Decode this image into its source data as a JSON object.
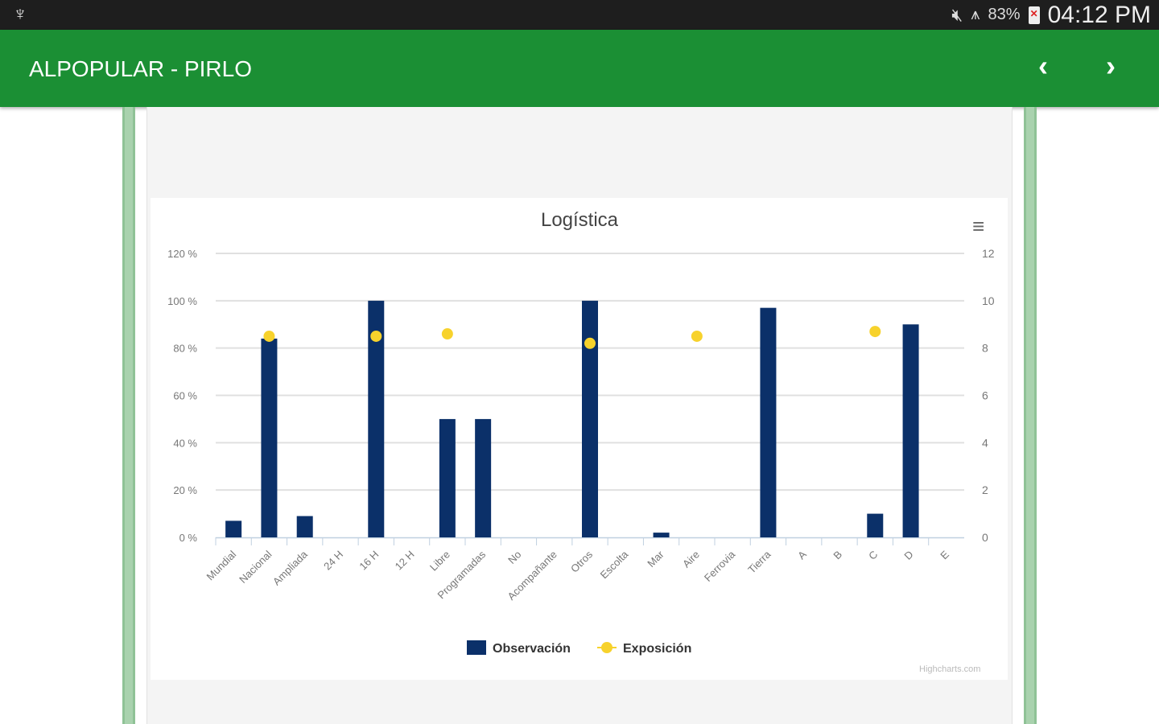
{
  "status_bar": {
    "usb_icon": "usb-icon",
    "battery": "83%",
    "time": "04:12 PM"
  },
  "app_bar": {
    "title": "ALPOPULAR - PIRLO",
    "prev": "‹",
    "next": "›"
  },
  "chart_menu": "≡",
  "credits": "Highcharts.com",
  "chart_data": {
    "type": "bar",
    "title": "Logística",
    "categories": [
      "Mundial",
      "Nacional",
      "Ampliada",
      "24 H",
      "16 H",
      "12 H",
      "Libre",
      "Programadas",
      "No",
      "Acompañante",
      "Otros",
      "Escolta",
      "Mar",
      "Aire",
      "Ferrovia",
      "Tierra",
      "A",
      "B",
      "C",
      "D",
      "E"
    ],
    "left_axis": {
      "ticks": [
        "0 %",
        "20 %",
        "40 %",
        "60 %",
        "80 %",
        "100 %",
        "120 %"
      ],
      "range": [
        0,
        120
      ]
    },
    "right_axis": {
      "ticks": [
        "0",
        "2",
        "4",
        "6",
        "8",
        "10",
        "12"
      ],
      "range": [
        0,
        12
      ]
    },
    "series": [
      {
        "name": "Observación",
        "type": "bar",
        "axis": "left",
        "color": "#0b3069",
        "values": [
          7,
          84,
          9,
          0,
          100,
          0,
          50,
          50,
          0,
          0,
          100,
          0,
          2,
          0,
          0,
          97,
          0,
          0,
          10,
          90,
          0
        ]
      },
      {
        "name": "Exposición",
        "type": "scatter",
        "axis": "right",
        "color": "#f7d22c",
        "values": [
          null,
          8.5,
          null,
          null,
          8.5,
          null,
          8.6,
          null,
          null,
          null,
          8.2,
          null,
          null,
          8.5,
          null,
          null,
          null,
          null,
          8.7,
          null,
          null
        ]
      }
    ],
    "legend": "bottom-center"
  }
}
